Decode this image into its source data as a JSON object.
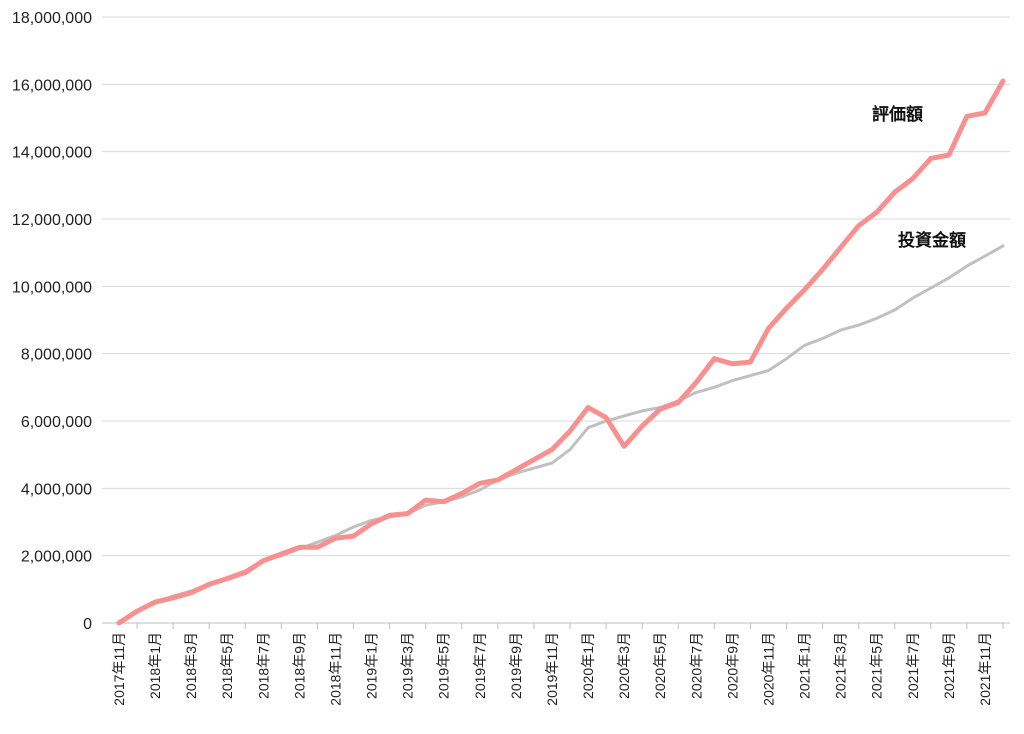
{
  "chart_data": {
    "type": "line",
    "title": "",
    "xlabel": "",
    "ylabel": "",
    "ylim": [
      0,
      18000000
    ],
    "yticks": [
      "0",
      "2,000,000",
      "4,000,000",
      "6,000,000",
      "8,000,000",
      "10,000,000",
      "12,000,000",
      "14,000,000",
      "16,000,000",
      "18,000,000"
    ],
    "grid": "horizontal",
    "legend": "inline labels near line ends",
    "x": [
      "2017年11月",
      "2017年12月",
      "2018年1月",
      "2018年2月",
      "2018年3月",
      "2018年4月",
      "2018年5月",
      "2018年6月",
      "2018年7月",
      "2018年8月",
      "2018年9月",
      "2018年10月",
      "2018年11月",
      "2018年12月",
      "2019年1月",
      "2019年2月",
      "2019年3月",
      "2019年4月",
      "2019年5月",
      "2019年6月",
      "2019年7月",
      "2019年8月",
      "2019年9月",
      "2019年10月",
      "2019年11月",
      "2019年12月",
      "2020年1月",
      "2020年2月",
      "2020年3月",
      "2020年4月",
      "2020年5月",
      "2020年6月",
      "2020年7月",
      "2020年8月",
      "2020年9月",
      "2020年10月",
      "2020年11月",
      "2020年12月",
      "2021年1月",
      "2021年2月",
      "2021年3月",
      "2021年4月",
      "2021年5月",
      "2021年6月",
      "2021年7月",
      "2021年8月",
      "2021年9月",
      "2021年10月",
      "2021年11月",
      "2021年12月"
    ],
    "xtick_labels": [
      "2017年11月",
      "2018年1月",
      "2018年3月",
      "2018年5月",
      "2018年7月",
      "2018年9月",
      "2018年11月",
      "2019年1月",
      "2019年3月",
      "2019年5月",
      "2019年7月",
      "2019年9月",
      "2019年11月",
      "2020年1月",
      "2020年3月",
      "2020年5月",
      "2020年7月",
      "2020年9月",
      "2020年11月",
      "2021年1月",
      "2021年3月",
      "2021年5月",
      "2021年7月",
      "2021年9月",
      "2021年11月"
    ],
    "series": [
      {
        "name": "評価額",
        "color": "#f99090",
        "values": [
          0,
          350000,
          620000,
          750000,
          900000,
          1150000,
          1320000,
          1500000,
          1850000,
          2050000,
          2250000,
          2250000,
          2520000,
          2580000,
          2950000,
          3200000,
          3250000,
          3650000,
          3600000,
          3850000,
          4150000,
          4250000,
          4550000,
          4850000,
          5150000,
          5700000,
          6400000,
          6100000,
          5250000,
          5850000,
          6350000,
          6550000,
          7150000,
          7850000,
          7700000,
          7750000,
          8750000,
          9350000,
          9900000,
          10500000,
          11150000,
          11800000,
          12200000,
          12800000,
          13200000,
          13800000,
          13900000,
          15050000,
          15150000,
          16100000
        ]
      },
      {
        "name": "投資金額",
        "color": "#c0c0c0",
        "values": [
          0,
          350000,
          600000,
          800000,
          950000,
          1150000,
          1350000,
          1550000,
          1850000,
          2000000,
          2200000,
          2400000,
          2600000,
          2850000,
          3050000,
          3150000,
          3250000,
          3500000,
          3600000,
          3750000,
          3950000,
          4250000,
          4450000,
          4600000,
          4750000,
          5150000,
          5800000,
          6000000,
          6150000,
          6300000,
          6400000,
          6600000,
          6850000,
          7000000,
          7200000,
          7350000,
          7500000,
          7850000,
          8250000,
          8450000,
          8700000,
          8850000,
          9050000,
          9300000,
          9650000,
          9950000,
          10250000,
          10600000,
          10900000,
          11200000
        ]
      }
    ]
  }
}
